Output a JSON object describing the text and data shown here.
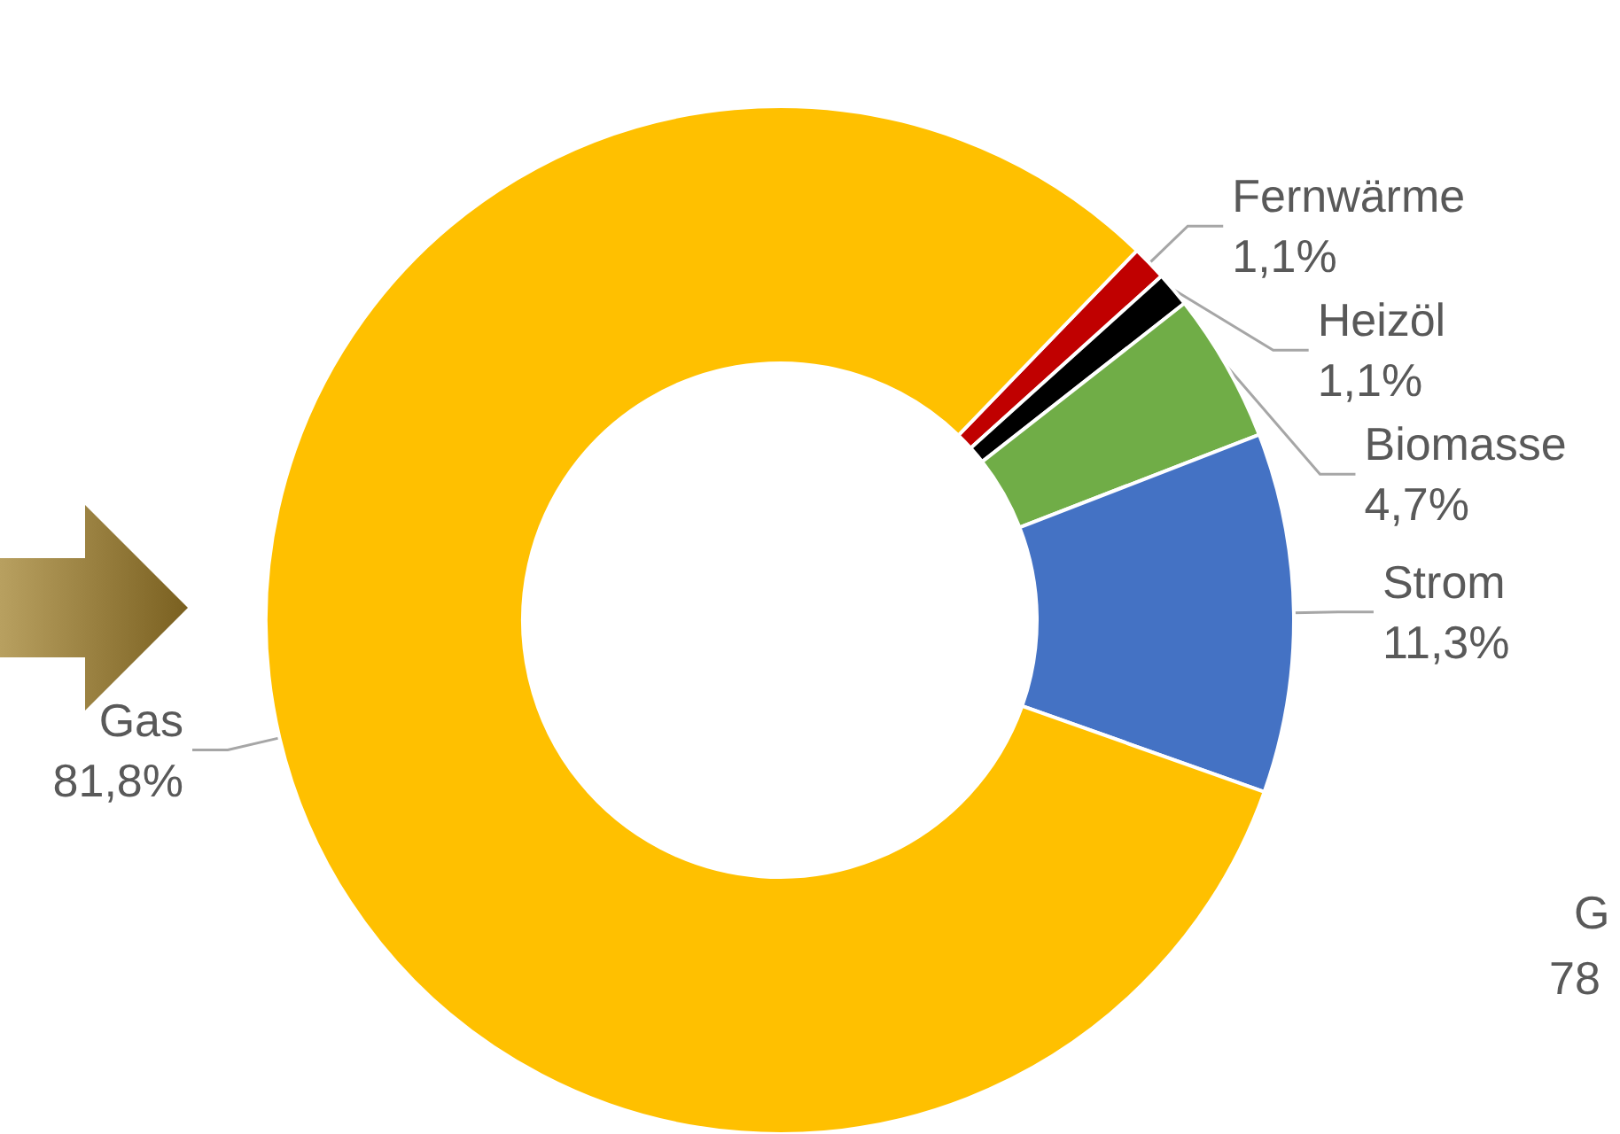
{
  "chart_data": {
    "type": "donut",
    "categories": [
      "Fernwärme",
      "Heizöl",
      "Biomasse",
      "Strom",
      "Gas"
    ],
    "values": [
      1.1,
      1.1,
      4.7,
      11.3,
      81.8
    ],
    "colors": [
      "#c00000",
      "#000000",
      "#70ad47",
      "#4472c4",
      "#ffc000"
    ],
    "value_labels": [
      "1,1%",
      "1,1%",
      "4,7%",
      "11,3%",
      "81,8%"
    ],
    "legend": false,
    "annotations": [
      "G",
      "78"
    ]
  }
}
